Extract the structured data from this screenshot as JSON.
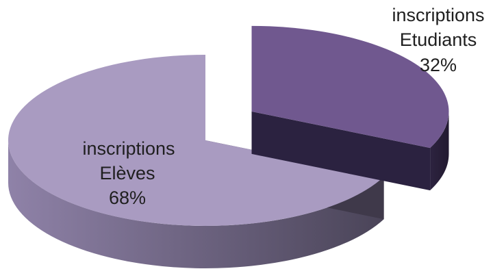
{
  "chart_data": {
    "type": "pie",
    "title": "",
    "legend": "none",
    "slices": [
      {
        "name_line1": "inscriptions",
        "name_line2": "Elèves",
        "value": 68,
        "label": "68%",
        "color_top": "#a99bc1",
        "color_side": "#8f82a8",
        "color_side_dark": "#4a4458"
      },
      {
        "name_line1": "inscriptions",
        "name_line2": "Etudiants",
        "value": 32,
        "label": "32%",
        "color_top": "#70588f",
        "color_side": "#2d2340",
        "color_side_dark": "#221a30"
      }
    ]
  }
}
